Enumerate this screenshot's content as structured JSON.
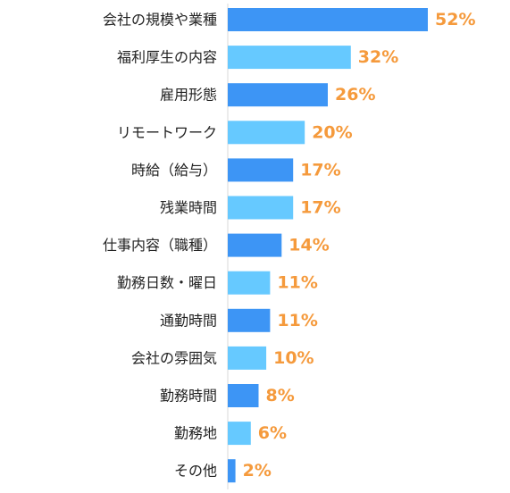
{
  "chart_data": {
    "type": "bar",
    "orientation": "horizontal",
    "title": "",
    "xlabel": "",
    "ylabel": "",
    "xlim": [
      0,
      52
    ],
    "grid": false,
    "legend": "none",
    "categories": [
      "会社の規模や業種",
      "福利厚生の内容",
      "雇用形態",
      "リモートワーク",
      "時給（給与）",
      "残業時間",
      "仕事内容（職種）",
      "勤務日数・曜日",
      "通勤時間",
      "会社の雰囲気",
      "勤務時間",
      "勤務地",
      "その他"
    ],
    "values": [
      52,
      32,
      26,
      20,
      17,
      17,
      14,
      11,
      11,
      10,
      8,
      6,
      2
    ],
    "value_labels": [
      "52%",
      "32%",
      "26%",
      "20%",
      "17%",
      "17%",
      "14%",
      "11%",
      "11%",
      "10%",
      "8%",
      "6%",
      "2%"
    ],
    "colors": {
      "bar_dark": "#3D95F5",
      "bar_light": "#66C9FF",
      "value_text": "#F59A3C",
      "axis": "#D8D8D8",
      "label_text": "#222222"
    }
  }
}
